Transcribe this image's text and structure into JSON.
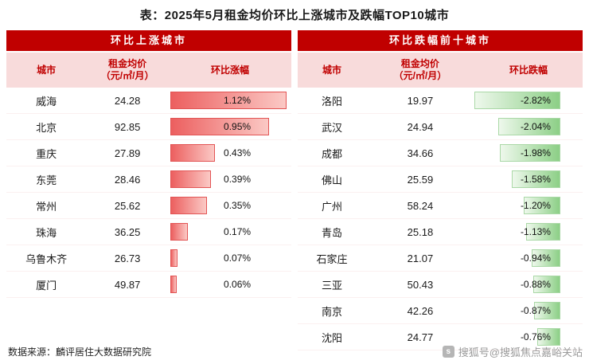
{
  "title": "表：2025年5月租金均价环比上涨城市及跌幅TOP10城市",
  "colors": {
    "band_red": "#c00000",
    "column_header_bg": "#f8dbdb",
    "column_header_text": "#c00000",
    "rise_bar_from": "#ec5f5f",
    "rise_bar_to": "#fbc9c5",
    "fall_bar_from": "#8ccf86",
    "fall_bar_to": "#eef8ec"
  },
  "left_table": {
    "band": "环比上涨城市",
    "col_city": "城市",
    "col_price_line1": "租金均价",
    "col_price_line2": "（元/㎡/月）",
    "col_change": "环比涨幅",
    "rows": [
      {
        "city": "威海",
        "price": "24.28",
        "change": "1.12%",
        "value": 1.12
      },
      {
        "city": "北京",
        "price": "92.85",
        "change": "0.95%",
        "value": 0.95
      },
      {
        "city": "重庆",
        "price": "27.89",
        "change": "0.43%",
        "value": 0.43
      },
      {
        "city": "东莞",
        "price": "28.46",
        "change": "0.39%",
        "value": 0.39
      },
      {
        "city": "常州",
        "price": "25.62",
        "change": "0.35%",
        "value": 0.35
      },
      {
        "city": "珠海",
        "price": "36.25",
        "change": "0.17%",
        "value": 0.17
      },
      {
        "city": "乌鲁木齐",
        "price": "26.73",
        "change": "0.07%",
        "value": 0.07
      },
      {
        "city": "厦门",
        "price": "49.87",
        "change": "0.06%",
        "value": 0.06
      }
    ]
  },
  "right_table": {
    "band": "环比跌幅前十城市",
    "col_city": "城市",
    "col_price_line1": "租金均价",
    "col_price_line2": "（元/㎡/月）",
    "col_change": "环比跌幅",
    "rows": [
      {
        "city": "洛阳",
        "price": "19.97",
        "change": "-2.82%",
        "value": -2.82
      },
      {
        "city": "武汉",
        "price": "24.94",
        "change": "-2.04%",
        "value": -2.04
      },
      {
        "city": "成都",
        "price": "34.66",
        "change": "-1.98%",
        "value": -1.98
      },
      {
        "city": "佛山",
        "price": "25.59",
        "change": "-1.58%",
        "value": -1.58
      },
      {
        "city": "广州",
        "price": "58.24",
        "change": "-1.20%",
        "value": -1.2
      },
      {
        "city": "青岛",
        "price": "25.18",
        "change": "-1.13%",
        "value": -1.13
      },
      {
        "city": "石家庄",
        "price": "21.07",
        "change": "-0.94%",
        "value": -0.94
      },
      {
        "city": "三亚",
        "price": "50.43",
        "change": "-0.88%",
        "value": -0.88
      },
      {
        "city": "南京",
        "price": "42.26",
        "change": "-0.87%",
        "value": -0.87
      },
      {
        "city": "沈阳",
        "price": "24.77",
        "change": "-0.76%",
        "value": -0.76
      }
    ]
  },
  "footer": {
    "source": "数据来源：麟评居住大数据研究院",
    "watermark": "搜狐号@搜狐焦点嘉峪关站",
    "watermark_icon": "s"
  },
  "chart_data": [
    {
      "type": "table",
      "title": "环比上涨城市",
      "columns": [
        "城市",
        "租金均价（元/㎡/月）",
        "环比涨幅"
      ],
      "rows": [
        [
          "威海",
          24.28,
          "1.12%"
        ],
        [
          "北京",
          92.85,
          "0.95%"
        ],
        [
          "重庆",
          27.89,
          "0.43%"
        ],
        [
          "东莞",
          28.46,
          "0.39%"
        ],
        [
          "常州",
          25.62,
          "0.35%"
        ],
        [
          "珠海",
          36.25,
          "0.17%"
        ],
        [
          "乌鲁木齐",
          26.73,
          "0.07%"
        ],
        [
          "厦门",
          49.87,
          "0.06%"
        ]
      ],
      "bar_column": "环比涨幅",
      "bar_values_pct": [
        1.12,
        0.95,
        0.43,
        0.39,
        0.35,
        0.17,
        0.07,
        0.06
      ],
      "bar_style": "red gradient data bars, left-anchored, scaled to max 1.12"
    },
    {
      "type": "table",
      "title": "环比跌幅前十城市",
      "columns": [
        "城市",
        "租金均价（元/㎡/月）",
        "环比跌幅"
      ],
      "rows": [
        [
          "洛阳",
          19.97,
          "-2.82%"
        ],
        [
          "武汉",
          24.94,
          "-2.04%"
        ],
        [
          "成都",
          34.66,
          "-1.98%"
        ],
        [
          "佛山",
          25.59,
          "-1.58%"
        ],
        [
          "广州",
          58.24,
          "-1.20%"
        ],
        [
          "青岛",
          25.18,
          "-1.13%"
        ],
        [
          "石家庄",
          21.07,
          "-0.94%"
        ],
        [
          "三亚",
          50.43,
          "-0.88%"
        ],
        [
          "南京",
          42.26,
          "-0.87%"
        ],
        [
          "沈阳",
          24.77,
          "-0.76%"
        ]
      ],
      "bar_column": "环比跌幅",
      "bar_values_pct": [
        -2.82,
        -2.04,
        -1.98,
        -1.58,
        -1.2,
        -1.13,
        -0.94,
        -0.88,
        -0.87,
        -0.76
      ],
      "bar_style": "green gradient data bars, right-anchored, scaled to max |−2.82|"
    }
  ]
}
